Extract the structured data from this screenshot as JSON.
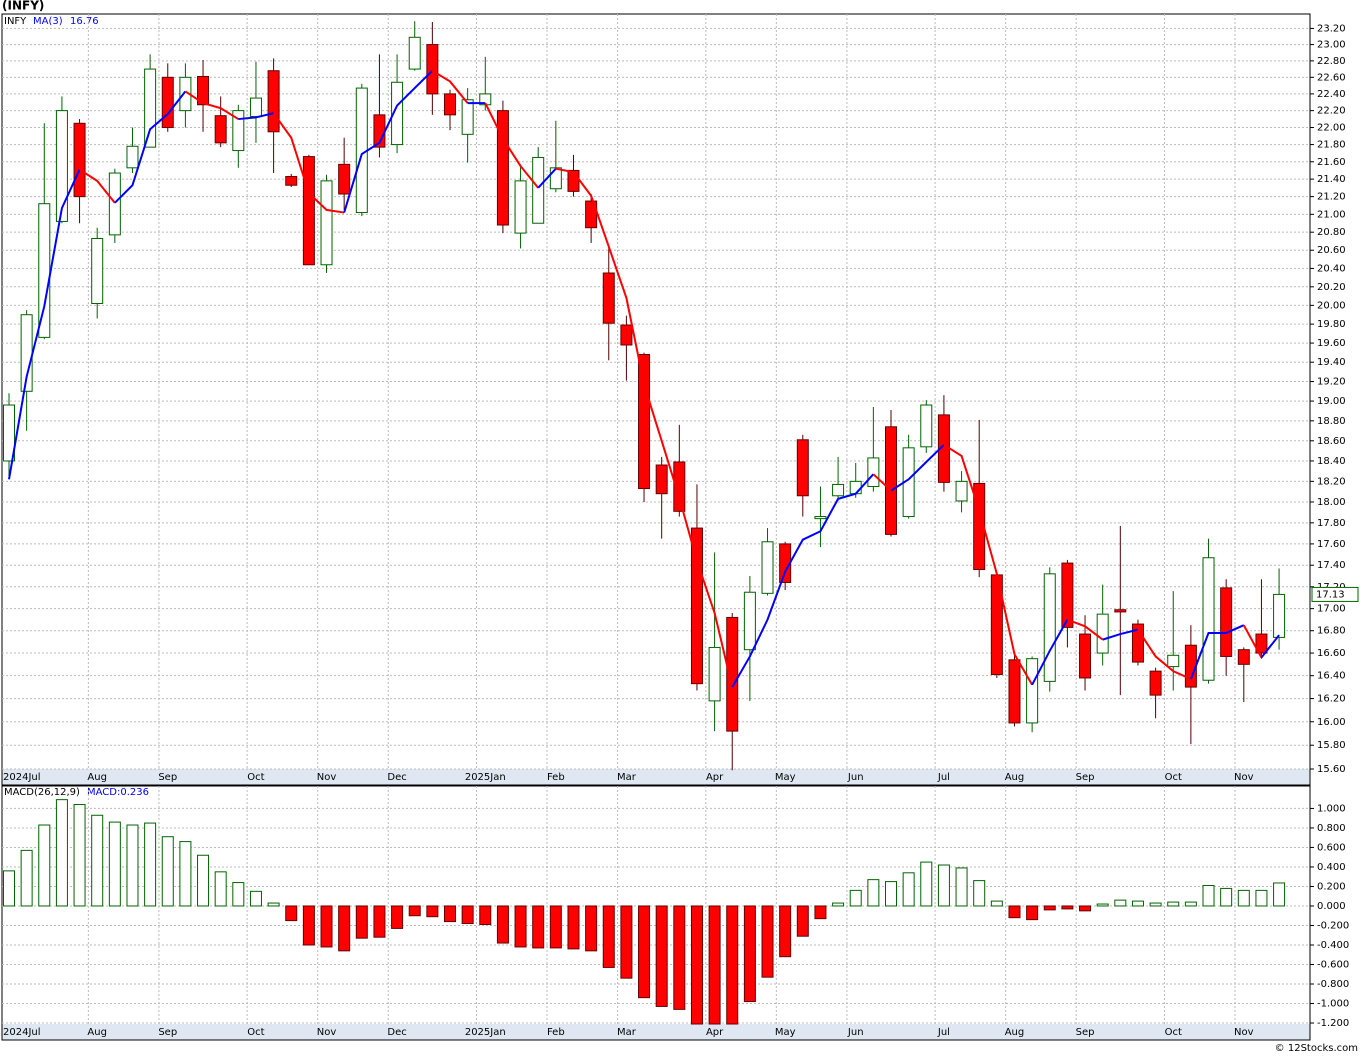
{
  "chart_data": [
    {
      "type": "candlestick",
      "title": "(INFY)",
      "symbol": "INFY",
      "categories": [
        "2024Jul",
        null,
        null,
        null,
        null,
        "Aug",
        null,
        null,
        null,
        "Sep",
        null,
        null,
        null,
        null,
        "Oct",
        null,
        null,
        null,
        "Nov",
        null,
        null,
        null,
        "Dec",
        null,
        null,
        null,
        null,
        "2025Jan",
        null,
        null,
        null,
        "Feb",
        null,
        null,
        null,
        "Mar",
        null,
        null,
        null,
        null,
        "Apr",
        null,
        null,
        null,
        "May",
        null,
        null,
        null,
        "Jun",
        null,
        null,
        null,
        null,
        "Jul",
        null,
        null,
        null,
        "Aug",
        null,
        null,
        null,
        "Sep",
        null,
        null,
        null,
        null,
        "Oct",
        null,
        null,
        null,
        "Nov",
        null,
        null
      ],
      "open": [
        18.4,
        19.1,
        19.66,
        20.92,
        22.05,
        20.02,
        20.77,
        21.53,
        21.77,
        22.6,
        22.2,
        22.61,
        22.14,
        21.73,
        22.13,
        22.68,
        21.43,
        21.66,
        20.44,
        21.57,
        21.02,
        22.15,
        21.8,
        22.7,
        23.0,
        22.4,
        21.92,
        22.27,
        22.2,
        20.79,
        20.9,
        21.29,
        21.5,
        21.15,
        20.35,
        19.79,
        19.48,
        18.36,
        18.39,
        17.75,
        16.18,
        16.92,
        16.63,
        17.14,
        17.6,
        18.61,
        17.84,
        18.06,
        18.08,
        18.15,
        18.74,
        17.86,
        18.54,
        18.86,
        18.01,
        18.18,
        17.31,
        16.54,
        15.99,
        16.35,
        17.42,
        16.77,
        16.6,
        16.99,
        16.86,
        16.44,
        16.48,
        16.67,
        16.36,
        17.19,
        16.63,
        16.77,
        16.74
      ],
      "high": [
        19.08,
        19.95,
        22.05,
        22.37,
        22.1,
        20.85,
        21.52,
        22.0,
        22.88,
        22.77,
        22.77,
        22.81,
        22.37,
        22.27,
        22.79,
        22.83,
        21.46,
        21.68,
        21.45,
        21.88,
        22.52,
        22.88,
        22.88,
        23.29,
        23.28,
        22.45,
        22.47,
        22.85,
        22.32,
        21.57,
        21.77,
        22.08,
        21.68,
        21.23,
        20.64,
        19.89,
        19.5,
        18.44,
        18.76,
        18.17,
        17.52,
        16.96,
        17.3,
        17.75,
        17.62,
        18.66,
        18.15,
        18.44,
        18.38,
        18.94,
        18.91,
        18.66,
        19.01,
        19.06,
        18.3,
        18.81,
        17.33,
        16.6,
        16.57,
        17.38,
        17.45,
        16.94,
        17.22,
        17.77,
        16.9,
        16.47,
        17.16,
        16.85,
        17.65,
        17.27,
        16.65,
        17.27,
        17.37
      ],
      "low": [
        18.25,
        18.7,
        19.64,
        20.9,
        20.9,
        19.86,
        20.68,
        21.47,
        21.77,
        21.95,
        22.0,
        21.95,
        21.77,
        21.53,
        21.82,
        21.47,
        21.31,
        20.44,
        20.35,
        21.05,
        20.98,
        21.65,
        21.7,
        22.68,
        22.15,
        21.97,
        21.59,
        22.2,
        20.79,
        20.62,
        20.9,
        21.25,
        21.2,
        20.68,
        19.42,
        19.21,
        18.0,
        17.65,
        17.86,
        16.27,
        15.92,
        15.59,
        16.18,
        17.12,
        17.17,
        17.86,
        17.57,
        18.01,
        18.04,
        18.1,
        17.67,
        17.84,
        18.48,
        18.1,
        17.9,
        17.29,
        16.38,
        15.96,
        15.91,
        16.26,
        16.65,
        16.27,
        16.49,
        16.23,
        16.49,
        16.03,
        16.27,
        15.81,
        16.33,
        16.4,
        16.17,
        16.55,
        16.63
      ],
      "close": [
        18.96,
        19.9,
        21.12,
        22.2,
        21.2,
        20.73,
        21.47,
        21.78,
        22.7,
        22.0,
        22.6,
        22.27,
        21.82,
        22.2,
        22.35,
        21.95,
        21.33,
        20.44,
        21.38,
        21.23,
        22.47,
        21.77,
        22.54,
        23.09,
        22.4,
        22.15,
        22.33,
        22.4,
        20.88,
        21.38,
        21.65,
        21.53,
        21.26,
        20.85,
        19.81,
        19.58,
        18.13,
        18.08,
        17.91,
        16.33,
        16.65,
        15.92,
        17.15,
        17.62,
        17.24,
        18.06,
        17.86,
        18.17,
        18.2,
        18.43,
        17.69,
        18.53,
        18.96,
        18.19,
        18.2,
        17.36,
        16.41,
        15.99,
        16.55,
        17.32,
        16.83,
        16.38,
        16.95,
        16.97,
        16.52,
        16.23,
        16.58,
        16.3,
        17.47,
        16.57,
        16.5,
        16.6,
        17.13
      ],
      "up_color": "#006400",
      "down_color": "#ff0000",
      "ma": {
        "name": "MA(3)",
        "up_color": "#0000ff",
        "down_color": "#ff0000",
        "values": [
          18.22,
          19.25,
          19.99,
          21.07,
          21.51,
          21.38,
          21.13,
          21.33,
          21.98,
          22.16,
          22.43,
          22.29,
          22.23,
          22.1,
          22.12,
          22.17,
          21.88,
          21.24,
          21.05,
          21.02,
          21.69,
          21.82,
          22.26,
          22.47,
          22.68,
          22.55,
          22.29,
          22.29,
          21.87,
          21.55,
          21.3,
          21.52,
          21.48,
          21.21,
          20.64,
          20.08,
          19.17,
          18.6,
          18.04,
          17.44,
          16.96,
          16.3,
          16.57,
          16.9,
          17.34,
          17.64,
          17.72,
          18.03,
          18.08,
          18.27,
          18.11,
          18.22,
          18.39,
          18.56,
          18.45,
          17.92,
          17.32,
          16.59,
          16.32,
          16.62,
          16.9,
          16.84,
          16.72,
          16.77,
          16.81,
          16.57,
          16.44,
          16.37,
          16.78,
          16.78,
          16.85,
          16.56,
          16.76
        ]
      },
      "log": true,
      "grid": true,
      "ylim": [
        15.6,
        23.38
      ],
      "yticks": [
        {
          "value": 23.2,
          "label": "23.20"
        },
        {
          "value": 23,
          "label": "23.00"
        },
        {
          "value": 22.8,
          "label": "22.80"
        },
        {
          "value": 22.6,
          "label": "22.60"
        },
        {
          "value": 22.4,
          "label": "22.40"
        },
        {
          "value": 22.2,
          "label": "22.20"
        },
        {
          "value": 22,
          "label": "22.00"
        },
        {
          "value": 21.8,
          "label": "21.80"
        },
        {
          "value": 21.6,
          "label": "21.60"
        },
        {
          "value": 21.4,
          "label": "21.40"
        },
        {
          "value": 21.2,
          "label": "21.20"
        },
        {
          "value": 21,
          "label": "21.00"
        },
        {
          "value": 20.8,
          "label": "20.80"
        },
        {
          "value": 20.6,
          "label": "20.60"
        },
        {
          "value": 20.4,
          "label": "20.40"
        },
        {
          "value": 20.2,
          "label": "20.20"
        },
        {
          "value": 20,
          "label": "20.00"
        },
        {
          "value": 19.8,
          "label": "19.80"
        },
        {
          "value": 19.6,
          "label": "19.60"
        },
        {
          "value": 19.4,
          "label": "19.40"
        },
        {
          "value": 19.2,
          "label": "19.20"
        },
        {
          "value": 19,
          "label": "19.00"
        },
        {
          "value": 18.8,
          "label": "18.80"
        },
        {
          "value": 18.6,
          "label": "18.60"
        },
        {
          "value": 18.4,
          "label": "18.40"
        },
        {
          "value": 18.2,
          "label": "18.20"
        },
        {
          "value": 18,
          "label": "18.00"
        },
        {
          "value": 17.8,
          "label": "17.80"
        },
        {
          "value": 17.6,
          "label": "17.60"
        },
        {
          "value": 17.4,
          "label": "17.40"
        },
        {
          "value": 17.2,
          "label": "17.20"
        },
        {
          "value": 17,
          "label": "17.00"
        },
        {
          "value": 16.8,
          "label": "16.80"
        },
        {
          "value": 16.6,
          "label": "16.60"
        },
        {
          "value": 16.4,
          "label": "16.40"
        },
        {
          "value": 16.2,
          "label": "16.20"
        },
        {
          "value": 16,
          "label": "16.00"
        },
        {
          "value": 15.8,
          "label": "15.80"
        },
        {
          "value": 15.6,
          "label": "15.60"
        }
      ]
    },
    {
      "type": "bar",
      "categories": [
        "2024Jul",
        null,
        null,
        null,
        null,
        "Aug",
        null,
        null,
        null,
        "Sep",
        null,
        null,
        null,
        null,
        "Oct",
        null,
        null,
        null,
        "Nov",
        null,
        null,
        null,
        "Dec",
        null,
        null,
        null,
        null,
        "2025Jan",
        null,
        null,
        null,
        "Feb",
        null,
        null,
        null,
        "Mar",
        null,
        null,
        null,
        null,
        "Apr",
        null,
        null,
        null,
        "May",
        null,
        null,
        null,
        "Jun",
        null,
        null,
        null,
        null,
        "Jul",
        null,
        null,
        null,
        "Aug",
        null,
        null,
        null,
        "Sep",
        null,
        null,
        null,
        null,
        "Oct",
        null,
        null,
        null,
        "Nov",
        null,
        null
      ],
      "series": [
        {
          "name": "MACD(26,12,9)",
          "value_label": "MACD:0.236",
          "up_color": "#006400",
          "down_color": "#ff0000",
          "values": [
            0.36,
            0.57,
            0.83,
            1.09,
            1.04,
            0.93,
            0.86,
            0.83,
            0.85,
            0.71,
            0.66,
            0.52,
            0.35,
            0.24,
            0.15,
            0.03,
            -0.15,
            -0.4,
            -0.42,
            -0.46,
            -0.33,
            -0.32,
            -0.23,
            -0.1,
            -0.11,
            -0.16,
            -0.18,
            -0.19,
            -0.38,
            -0.42,
            -0.43,
            -0.43,
            -0.44,
            -0.46,
            -0.63,
            -0.74,
            -0.94,
            -1.03,
            -1.06,
            -1.22,
            -1.22,
            -1.22,
            -0.98,
            -0.73,
            -0.52,
            -0.31,
            -0.13,
            0.03,
            0.16,
            0.27,
            0.25,
            0.34,
            0.45,
            0.42,
            0.39,
            0.26,
            0.05,
            -0.12,
            -0.14,
            -0.04,
            -0.03,
            -0.05,
            0.02,
            0.06,
            0.05,
            0.03,
            0.04,
            0.04,
            0.21,
            0.18,
            0.16,
            0.16,
            0.236
          ]
        }
      ],
      "grid": true,
      "ylim": [
        -1.21,
        1.23
      ],
      "yticks": [
        {
          "value": 1,
          "label": "1.000"
        },
        {
          "value": 0.8,
          "label": "0.800"
        },
        {
          "value": 0.6,
          "label": "0.600"
        },
        {
          "value": 0.4,
          "label": "0.400"
        },
        {
          "value": 0.2,
          "label": "0.200"
        },
        {
          "value": 0,
          "label": "0.000"
        },
        {
          "value": -0.2,
          "label": "-0.200"
        },
        {
          "value": -0.4,
          "label": "-0.400"
        },
        {
          "value": -0.6,
          "label": "-0.600"
        },
        {
          "value": -0.8,
          "label": "-0.800"
        },
        {
          "value": -1,
          "label": "-1.000"
        },
        {
          "value": -1.2,
          "label": "-1.200"
        }
      ]
    }
  ],
  "footer": "© 12Stocks.com"
}
